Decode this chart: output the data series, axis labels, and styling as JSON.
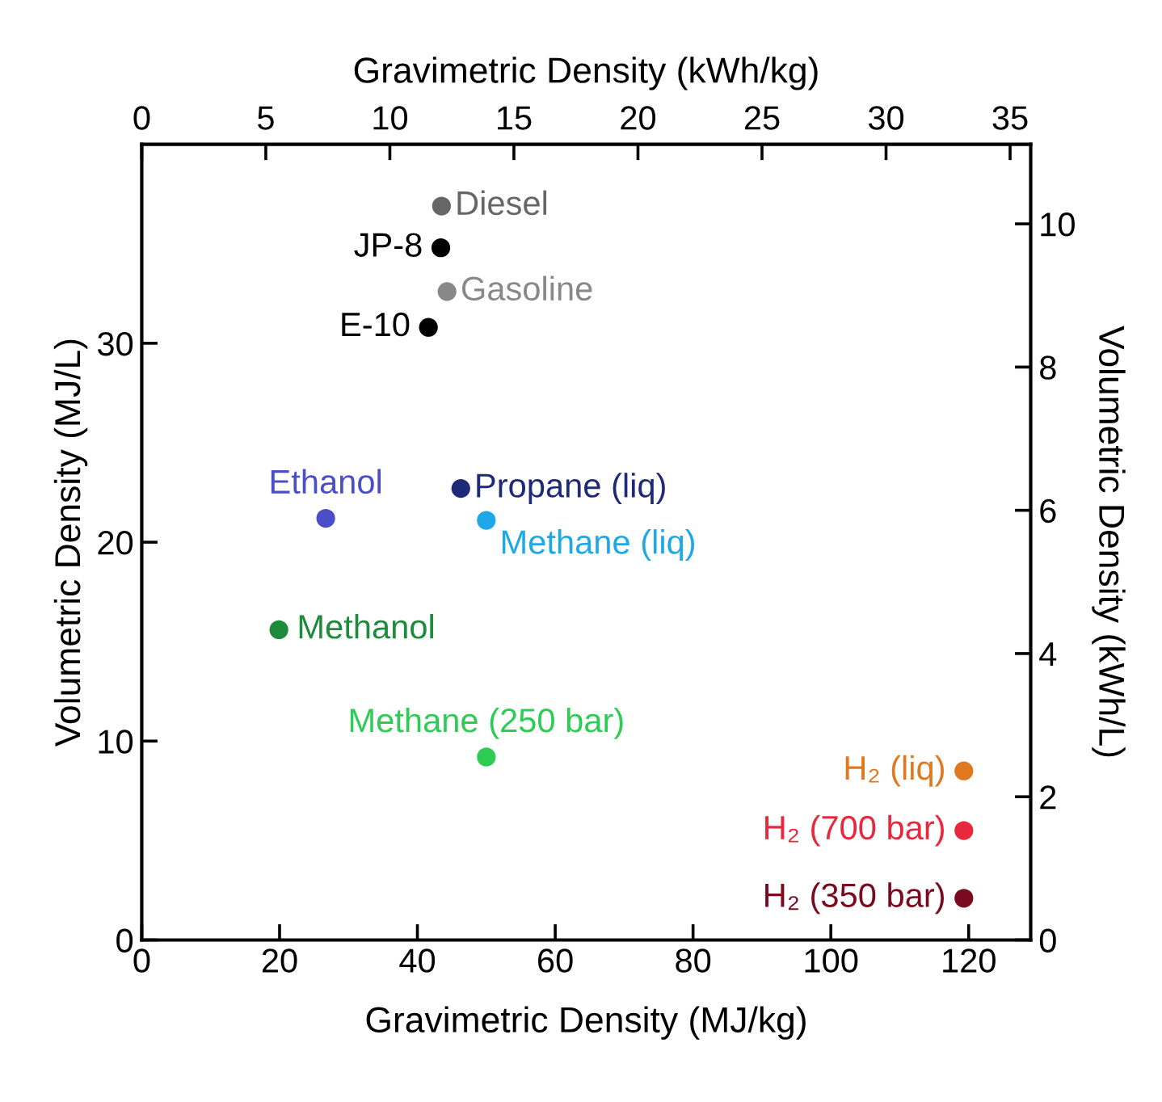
{
  "chart_data": {
    "type": "scatter",
    "xlabel": "Gravimetric Density (MJ/kg)",
    "ylabel": "Volumetric Density (MJ/L)",
    "x2label": "Gravimetric Density (kWh/kg)",
    "y2label": "Volumetric Density (kWh/L)",
    "xlim": [
      0,
      129
    ],
    "xticks": [
      0,
      20,
      40,
      60,
      80,
      100,
      120
    ],
    "ylim": [
      0,
      40
    ],
    "yticks": [
      0,
      10,
      20,
      30
    ],
    "x2lim": [
      0,
      35.83
    ],
    "x2ticks": [
      0,
      5,
      10,
      15,
      20,
      25,
      30,
      35
    ],
    "y2lim": [
      0,
      11.11
    ],
    "y2ticks": [
      0,
      2,
      4,
      6,
      8,
      10
    ],
    "grid": false,
    "legend": false,
    "marker": "circle",
    "series": [
      {
        "name": "Diesel",
        "color": "#666666",
        "x": [
          43.5
        ],
        "values": [
          36.9
        ]
      },
      {
        "name": "JP-8",
        "color": "#000000",
        "x": [
          43.4
        ],
        "values": [
          34.8
        ]
      },
      {
        "name": "Gasoline",
        "color": "#888888",
        "x": [
          44.3
        ],
        "values": [
          32.6
        ]
      },
      {
        "name": "E-10",
        "color": "#000000",
        "x": [
          41.6
        ],
        "values": [
          30.8
        ]
      },
      {
        "name": "Ethanol",
        "color": "#4a4fc8",
        "x": [
          26.7
        ],
        "values": [
          21.2
        ]
      },
      {
        "name": "Propane (liq)",
        "color": "#1e2a78",
        "x": [
          46.3
        ],
        "values": [
          22.7
        ]
      },
      {
        "name": "Methane (liq)",
        "color": "#1fa8e8",
        "x": [
          50
        ],
        "values": [
          21.1
        ]
      },
      {
        "name": "Methanol",
        "color": "#1e8a3c",
        "x": [
          19.9
        ],
        "values": [
          15.6
        ]
      },
      {
        "name": "Methane (250 bar)",
        "color": "#2ecc55",
        "x": [
          50
        ],
        "values": [
          9.2
        ]
      },
      {
        "name": "H₂ (liq)",
        "color": "#e07820",
        "x": [
          119.3
        ],
        "values": [
          8.5
        ]
      },
      {
        "name": "H₂ (700 bar)",
        "color": "#e8283c",
        "x": [
          119.3
        ],
        "values": [
          5.5
        ]
      },
      {
        "name": "H₂ (350 bar)",
        "color": "#7a0a1e",
        "x": [
          119.3
        ],
        "values": [
          2.1
        ]
      }
    ]
  }
}
